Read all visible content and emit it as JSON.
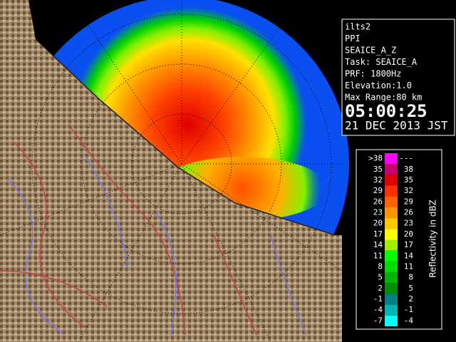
{
  "info": {
    "lines": [
      "ilts2",
      "PPI",
      "SEAICE_A_Z",
      "Task: SEAICE_A",
      "PRF: 1800Hz",
      "Elevation:1.0",
      "Max Range:80 km"
    ],
    "time": "05:00:25",
    "date": "21 DEC 2013 JST"
  },
  "legend": {
    "title": "Reflectivity in dBZ",
    "rows": [
      {
        "low": ">38",
        "high": "---",
        "color": "#ff00ff"
      },
      {
        "low": "35",
        "high": "38",
        "color": "#c80070"
      },
      {
        "low": "32",
        "high": "35",
        "color": "#e00000"
      },
      {
        "low": "29",
        "high": "32",
        "color": "#ff3000"
      },
      {
        "low": "26",
        "high": "29",
        "color": "#ff6400"
      },
      {
        "low": "23",
        "high": "26",
        "color": "#ff9600"
      },
      {
        "low": "20",
        "high": "23",
        "color": "#ffc800"
      },
      {
        "low": "17",
        "high": "20",
        "color": "#ffff00"
      },
      {
        "low": "14",
        "high": "17",
        "color": "#a0f000"
      },
      {
        "low": "11",
        "high": "14",
        "color": "#00ff00"
      },
      {
        "low": "8",
        "high": "11",
        "color": "#00dc00"
      },
      {
        "low": "5",
        "high": "8",
        "color": "#00b400"
      },
      {
        "low": "2",
        "high": "5",
        "color": "#008c00"
      },
      {
        "low": "-1",
        "high": "2",
        "color": "#008080"
      },
      {
        "low": "-4",
        "high": "-1",
        "color": "#00b4b4"
      },
      {
        "low": "-7",
        "high": "-4",
        "color": "#00ffff"
      }
    ]
  }
}
